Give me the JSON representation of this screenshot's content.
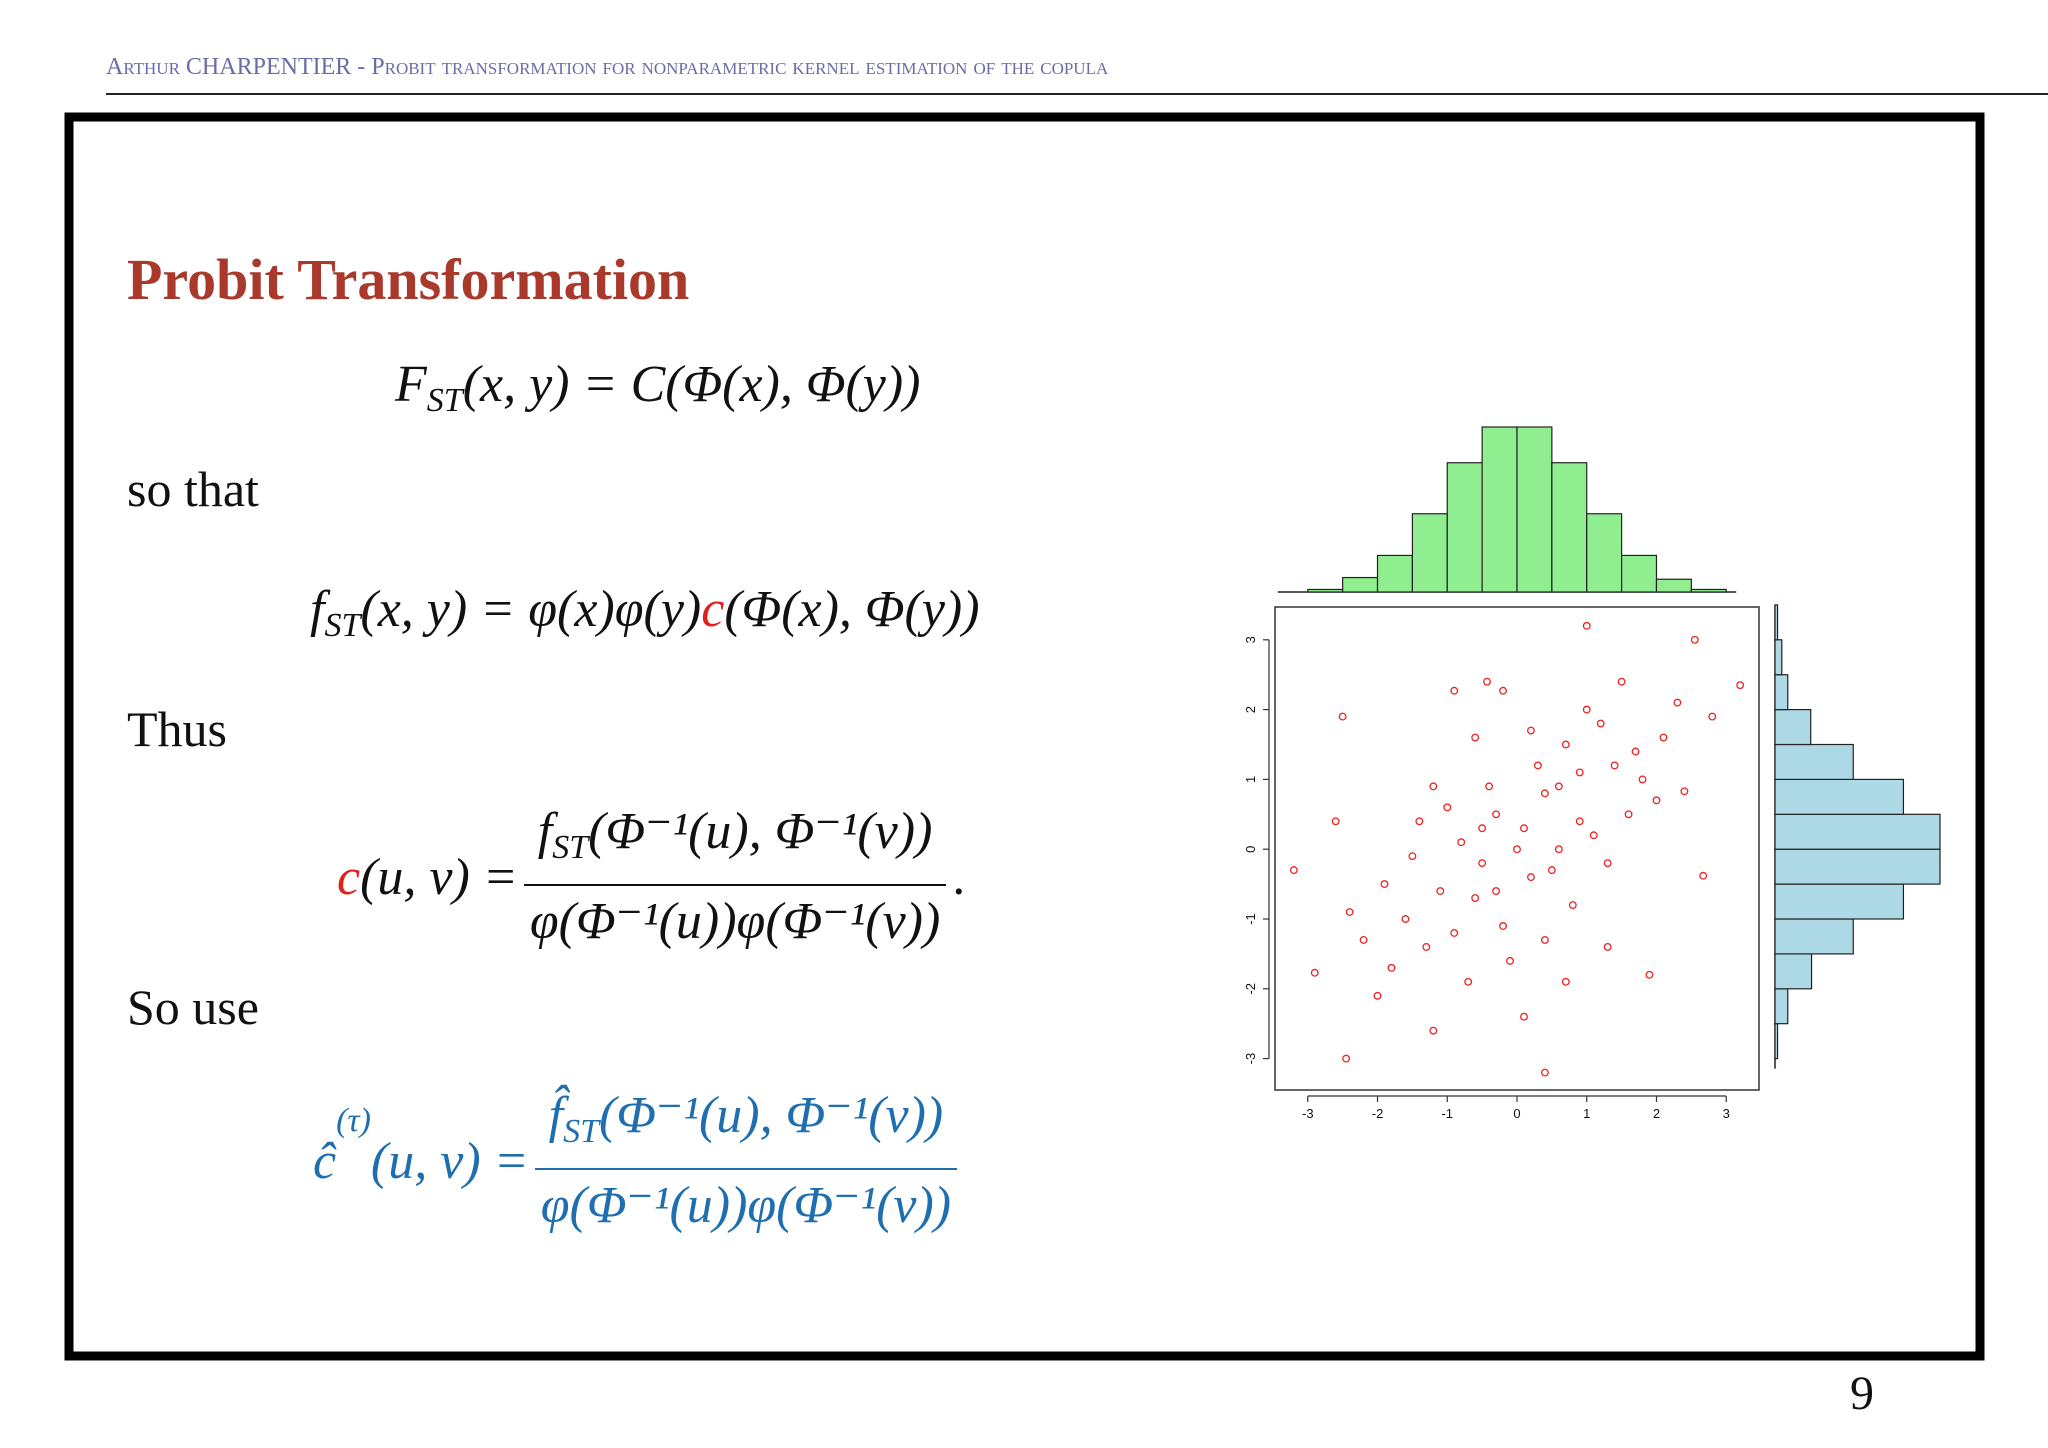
{
  "header": {
    "text": "Arthur CHARPENTIER - Probit transformation for nonparametric kernel estimation of the copula"
  },
  "slide": {
    "title": "Probit Transformation",
    "formula_1": {
      "f": "F",
      "sub": "ST",
      "rest": "(x, y) = C(Φ(x), Φ(y))"
    },
    "text_1": "so that",
    "formula_2": {
      "f": "f",
      "sub": "ST",
      "mid": "(x, y) = φ(x)φ(y)",
      "c": "c",
      "rest": "(Φ(x), Φ(y))"
    },
    "text_2": "Thus",
    "formula_3": {
      "c": "c",
      "lhs": "(u, v) =",
      "num_f": "f",
      "num_sub": "ST",
      "num_rest": "(Φ⁻¹(u), Φ⁻¹(v))",
      "den": "φ(Φ⁻¹(u))φ(Φ⁻¹(v))",
      "end": "."
    },
    "text_3": "So use",
    "formula_4": {
      "c": "ĉ",
      "sup": "(τ)",
      "lhs": "(u, v) =",
      "num_f": "f̂",
      "num_sub": "ST",
      "num_rest": "(Φ⁻¹(u), Φ⁻¹(v))",
      "den": "φ(Φ⁻¹(u))φ(Φ⁻¹(v))"
    },
    "page_number": "9"
  },
  "chart_data": {
    "type": "scatter",
    "color": "#ee2222",
    "x": [
      0.1,
      -0.5,
      0.6,
      -1.1,
      0.9,
      -0.3,
      1.4,
      -1.6,
      0.2,
      0.7,
      -0.8,
      1.1,
      -0.2,
      0.4,
      -1.3,
      1.8,
      -0.6,
      0.0,
      1.2,
      -1.9,
      0.5,
      -0.4,
      2.1,
      -2.2,
      0.8,
      -1.0,
      1.6,
      -0.1,
      0.3,
      -1.5,
      1.0,
      -0.7,
      2.3,
      -2.4,
      0.6,
      -0.9,
      1.3,
      -1.2,
      0.2,
      -0.3,
      1.7,
      -1.8,
      0.9,
      -0.5,
      2.0,
      -2.0,
      0.4,
      -1.4,
      1.5,
      -0.2,
      1.0,
      3.2,
      2.55,
      -3.2,
      -2.45,
      0.4,
      -2.5,
      -0.9,
      -0.43,
      2.67,
      2.4,
      -2.9,
      1.9,
      -1.2,
      0.1,
      2.8,
      -2.6,
      1.3,
      -0.6,
      0.7
    ],
    "y": [
      0.3,
      -0.2,
      0.9,
      -0.6,
      0.4,
      0.5,
      1.2,
      -1.0,
      -0.4,
      1.5,
      0.1,
      0.2,
      -1.1,
      0.8,
      -1.4,
      1.0,
      -0.7,
      0.0,
      1.8,
      -0.5,
      -0.3,
      0.9,
      1.6,
      -1.3,
      -0.8,
      0.6,
      0.5,
      -1.6,
      1.2,
      -0.1,
      2.0,
      -1.9,
      2.1,
      -0.9,
      0.0,
      -1.2,
      -0.2,
      0.9,
      1.7,
      -0.6,
      1.4,
      -1.7,
      1.1,
      0.3,
      0.7,
      -2.1,
      -1.3,
      0.4,
      2.4,
      2.27,
      3.2,
      2.35,
      3.0,
      -0.3,
      -3.0,
      -3.2,
      1.9,
      2.27,
      2.4,
      -0.38,
      0.83,
      -1.77,
      -1.8,
      -2.6,
      -2.4,
      1.9,
      0.4,
      -1.4,
      1.6,
      -1.9
    ],
    "xlim": [
      -3.47,
      3.47
    ],
    "ylim": [
      -3.45,
      3.47
    ],
    "xticks": [
      -3,
      -2,
      -1,
      0,
      1,
      2,
      3
    ],
    "yticks": [
      -3,
      -2,
      -1,
      0,
      1,
      2,
      3
    ],
    "top_histogram": {
      "color": "#90ee90",
      "bins": [
        -3,
        -2.5,
        -2,
        -1.5,
        -1,
        -0.5,
        0,
        0.5,
        1,
        1.5,
        2,
        2.5,
        3
      ],
      "counts": [
        3,
        17,
        43,
        92,
        152,
        194,
        194,
        152,
        92,
        43,
        15,
        3
      ]
    },
    "right_histogram": {
      "color": "#add8e6",
      "bins": [
        -3,
        -2.5,
        -2,
        -1.5,
        -1,
        -0.5,
        0,
        0.5,
        1,
        1.5,
        2,
        2.5,
        3,
        3.5
      ],
      "counts": [
        3,
        15,
        43,
        92,
        151,
        194,
        194,
        151,
        92,
        42,
        15,
        8,
        3
      ]
    }
  }
}
